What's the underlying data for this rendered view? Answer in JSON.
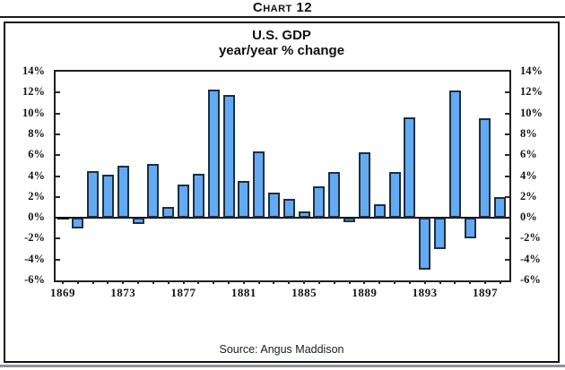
{
  "header": {
    "title": "Chart 12"
  },
  "source_note": "Source: Angus Maddison",
  "chart_data": {
    "type": "bar",
    "title": "U.S. GDP",
    "subtitle": "year/year % change",
    "x": [
      1869,
      1870,
      1871,
      1872,
      1873,
      1874,
      1875,
      1876,
      1877,
      1878,
      1879,
      1880,
      1881,
      1882,
      1883,
      1884,
      1885,
      1886,
      1887,
      1888,
      1889,
      1890,
      1891,
      1892,
      1893,
      1894,
      1895,
      1896,
      1897,
      1898
    ],
    "values": [
      0.0,
      -1.0,
      4.5,
      4.1,
      5.0,
      -0.6,
      5.2,
      1.0,
      3.2,
      4.2,
      12.3,
      11.8,
      3.5,
      6.4,
      2.4,
      1.8,
      0.6,
      3.0,
      4.4,
      -0.4,
      6.3,
      1.3,
      4.4,
      9.6,
      -5.0,
      -3.0,
      12.2,
      -2.0,
      9.5,
      2.0
    ],
    "ylim": [
      -6,
      14
    ],
    "ytick_step": 2,
    "ytick_suffix": "%",
    "ytick_labels_both_sides": true,
    "xtick_labeled_years": [
      1869,
      1873,
      1877,
      1881,
      1885,
      1889,
      1893,
      1897
    ],
    "grid": false,
    "legend": null,
    "bar_fill_color": "#64aaf2",
    "bar_border_color": "#1c2f42",
    "zero_year_rendered_as_black_dash": 1869
  }
}
